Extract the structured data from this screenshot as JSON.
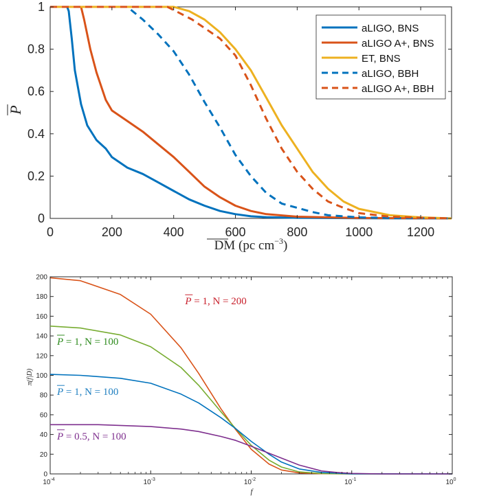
{
  "chart_data": [
    {
      "type": "line",
      "xlabel": "DM (pc cm",
      "xlabel_exp": "−3",
      "xlabel_close": ")",
      "ylabel": "P",
      "xlim": [
        0,
        1300
      ],
      "ylim": [
        0,
        1
      ],
      "xticks": [
        0,
        200,
        400,
        600,
        800,
        1000,
        1200
      ],
      "xtick_labels": [
        "0",
        "200",
        "400",
        "600",
        "800",
        "1000",
        "1200"
      ],
      "yticks": [
        0,
        0.2,
        0.4,
        0.6,
        0.8,
        1
      ],
      "ytick_labels": [
        "0",
        "0.2",
        "0.4",
        "0.6",
        "0.8",
        "1"
      ],
      "grid": false,
      "legend_position": "top-right",
      "series": [
        {
          "name": "aLIGO, BNS",
          "color": "#0072BD",
          "dash": "solid",
          "x": [
            0,
            55,
            60,
            70,
            80,
            100,
            120,
            150,
            180,
            200,
            250,
            300,
            350,
            400,
            450,
            500,
            550,
            600,
            650,
            700,
            800,
            1000,
            1300
          ],
          "y": [
            1,
            1,
            0.98,
            0.85,
            0.7,
            0.54,
            0.44,
            0.37,
            0.33,
            0.29,
            0.24,
            0.21,
            0.17,
            0.13,
            0.09,
            0.06,
            0.035,
            0.02,
            0.01,
            0.006,
            0.003,
            0.001,
            0
          ]
        },
        {
          "name": "aLIGO A+, BNS",
          "color": "#D95319",
          "dash": "solid",
          "x": [
            0,
            100,
            110,
            130,
            150,
            180,
            200,
            250,
            300,
            350,
            400,
            450,
            500,
            550,
            600,
            650,
            700,
            800,
            1000,
            1300
          ],
          "y": [
            1,
            1,
            0.94,
            0.8,
            0.69,
            0.56,
            0.51,
            0.46,
            0.41,
            0.35,
            0.29,
            0.22,
            0.15,
            0.1,
            0.06,
            0.035,
            0.02,
            0.008,
            0.002,
            0
          ]
        },
        {
          "name": "ET, BNS",
          "color": "#EDB120",
          "dash": "solid",
          "x": [
            0,
            400,
            450,
            500,
            550,
            600,
            650,
            700,
            750,
            800,
            850,
            900,
            950,
            1000,
            1100,
            1200,
            1300
          ],
          "y": [
            1,
            1,
            0.98,
            0.94,
            0.88,
            0.8,
            0.7,
            0.57,
            0.44,
            0.33,
            0.22,
            0.14,
            0.08,
            0.045,
            0.015,
            0.005,
            0
          ]
        },
        {
          "name": "aLIGO, BBH",
          "color": "#0072BD",
          "dash": "dashed",
          "x": [
            0,
            250,
            300,
            350,
            400,
            450,
            500,
            550,
            600,
            650,
            700,
            750,
            800,
            850,
            900,
            1000,
            1100,
            1300
          ],
          "y": [
            1,
            1,
            0.94,
            0.87,
            0.79,
            0.68,
            0.55,
            0.43,
            0.3,
            0.2,
            0.12,
            0.07,
            0.05,
            0.03,
            0.015,
            0.005,
            0.002,
            0
          ]
        },
        {
          "name": "aLIGO A+, BBH",
          "color": "#D95319",
          "dash": "dashed",
          "x": [
            0,
            380,
            420,
            460,
            500,
            550,
            600,
            650,
            700,
            750,
            800,
            850,
            900,
            950,
            1000,
            1100,
            1200,
            1300
          ],
          "y": [
            1,
            1,
            0.97,
            0.94,
            0.9,
            0.85,
            0.77,
            0.63,
            0.47,
            0.33,
            0.22,
            0.14,
            0.08,
            0.05,
            0.025,
            0.008,
            0.003,
            0
          ]
        }
      ]
    },
    {
      "type": "line",
      "xscale": "log",
      "xlabel": "f",
      "ylabel": "π(f|D)",
      "xlim": [
        0.0001,
        1
      ],
      "ylim": [
        0,
        200
      ],
      "xtick_exponents": [
        "-4",
        "-3",
        "-2",
        "-1",
        "0"
      ],
      "xtick_base": "10",
      "yticks": [
        0,
        20,
        40,
        60,
        80,
        100,
        120,
        140,
        160,
        180,
        200
      ],
      "ytick_labels": [
        "0",
        "20",
        "40",
        "60",
        "80",
        "100",
        "120",
        "140",
        "160",
        "180",
        "200"
      ],
      "grid": false,
      "series": [
        {
          "color": "#D95319",
          "x": [
            0.0001,
            0.0002,
            0.0005,
            0.001,
            0.002,
            0.003,
            0.005,
            0.007,
            0.01,
            0.015,
            0.02,
            0.03,
            0.05,
            0.1,
            1
          ],
          "y": [
            199,
            196,
            182,
            162,
            128,
            102,
            66,
            45,
            25,
            10,
            4,
            1,
            0.2,
            0,
            0
          ]
        },
        {
          "color": "#77AC30",
          "x": [
            0.0001,
            0.0002,
            0.0005,
            0.001,
            0.002,
            0.003,
            0.005,
            0.007,
            0.01,
            0.015,
            0.02,
            0.03,
            0.05,
            0.1,
            1
          ],
          "y": [
            150,
            148,
            141,
            129,
            108,
            90,
            63,
            46,
            29,
            14,
            7,
            2,
            0.4,
            0,
            0
          ]
        },
        {
          "color": "#0072BD",
          "x": [
            0.0001,
            0.0002,
            0.0005,
            0.001,
            0.002,
            0.003,
            0.005,
            0.007,
            0.01,
            0.015,
            0.02,
            0.03,
            0.05,
            0.1,
            1
          ],
          "y": [
            101,
            100,
            97,
            92,
            81,
            72,
            57,
            46,
            33,
            20,
            12,
            5,
            1.5,
            0.1,
            0
          ]
        },
        {
          "color": "#7E2F8E",
          "x": [
            0.0001,
            0.0003,
            0.001,
            0.002,
            0.003,
            0.005,
            0.007,
            0.01,
            0.015,
            0.02,
            0.03,
            0.05,
            0.07,
            0.1,
            0.2,
            1
          ],
          "y": [
            50,
            50,
            48,
            45.5,
            43,
            38,
            34,
            28,
            21,
            16,
            9,
            3,
            1.5,
            0.5,
            0,
            0
          ]
        }
      ],
      "annotations": [
        {
          "prefix": "P",
          "rest": " = 1, N = 200",
          "color": "#C8202C",
          "at": [
            0.0022,
            172
          ]
        },
        {
          "prefix": "P",
          "rest": " = 1, N = 100",
          "color": "#2E8B1E",
          "at": [
            0.000117,
            131
          ]
        },
        {
          "prefix": "P",
          "rest": " = 1, N = 100",
          "color": "#1F7FC0",
          "at": [
            0.000117,
            80
          ]
        },
        {
          "prefix": "P",
          "rest": " = 0.5, N = 100",
          "color": "#7E2F8E",
          "at": [
            0.000117,
            35
          ]
        }
      ]
    }
  ]
}
